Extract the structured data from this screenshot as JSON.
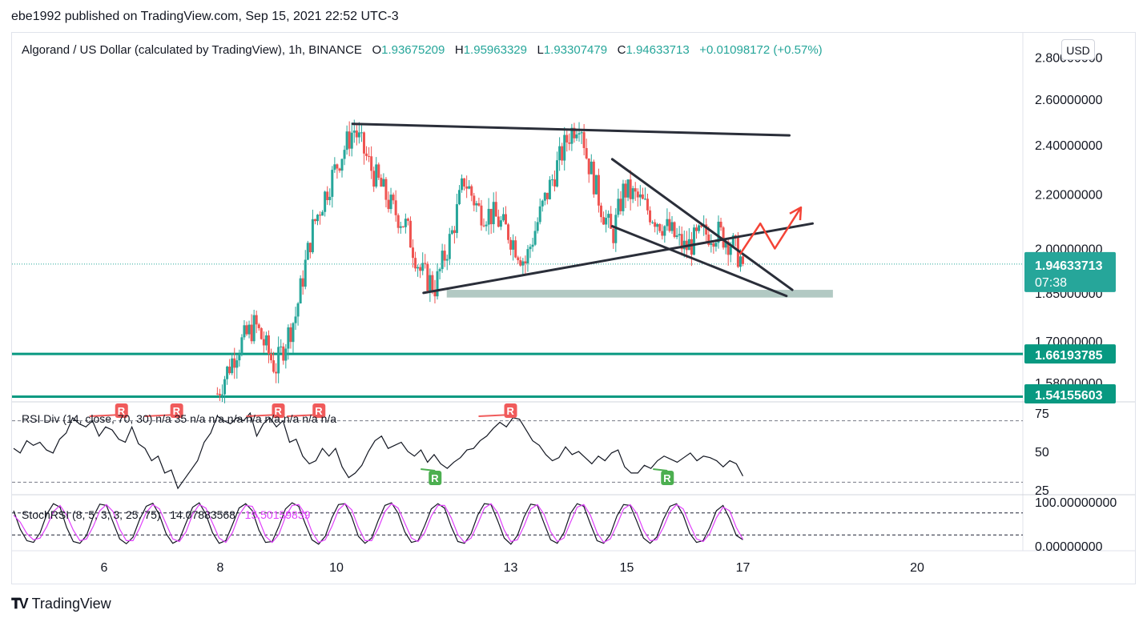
{
  "header": {
    "published": "ebe1992 published on TradingView.com, Sep 15, 2021 22:52 UTC-3"
  },
  "legend": {
    "symbol": "Algorand / US Dollar (calculated by TradingView), 1h, BINANCE",
    "o_label": "O",
    "o": "1.93675209",
    "h_label": "H",
    "h": "1.95963329",
    "l_label": "L",
    "l": "1.93307479",
    "c_label": "C",
    "c": "1.94633713",
    "change": "+0.01098172 (+0.57%)"
  },
  "currency": "USD",
  "price_axis": {
    "ticks": [
      "2.80000000",
      "2.60000000",
      "2.40000000",
      "2.20000000",
      "2.00000000",
      "1.85000000",
      "1.70000000",
      "1.58000000"
    ],
    "current_price": "1.94633713",
    "countdown": "07:38",
    "levels": [
      "1.66193785",
      "1.54155603"
    ]
  },
  "time_axis": {
    "labels": [
      "6",
      "8",
      "10",
      "13",
      "15",
      "17",
      "20"
    ]
  },
  "rsi": {
    "label": "RSI Div (14, close, 70, 30)  n/a  35  n/a  n/a  n/a  n/a  n/a  n/a  n/a  n/a",
    "ticks": [
      "75",
      "50",
      "25"
    ],
    "bear_marker": "R",
    "bull_marker": "R"
  },
  "stoch": {
    "label": "StochRSI (8, 5, 3, 3, 25, 75)",
    "k_value": "14.07883568",
    "d_value": "15.50159839",
    "ticks": [
      "100.00000000",
      "0.00000000"
    ]
  },
  "colors": {
    "up": "#26a69a",
    "down": "#ef5350",
    "level": "#089981",
    "zone": "#9fbcb4",
    "arrow": "#f44336",
    "stoch_d": "#e040fb",
    "bull_marker": "#4caf50",
    "bear_marker": "#f05b5b"
  },
  "chart_data": [
    {
      "type": "candlestick",
      "title": "Algorand / US Dollar, 1h, BINANCE",
      "ylabel": "USD",
      "ylim": [
        1.52,
        2.85
      ],
      "y_scale": "log",
      "x_range_days": [
        5,
        21
      ],
      "x_ticks": [
        6,
        8,
        10,
        13,
        15,
        17,
        20
      ],
      "last_close": 1.94633713,
      "price_path": [
        [
          7.95,
          1.55
        ],
        [
          8.3,
          1.68
        ],
        [
          8.6,
          1.75
        ],
        [
          8.95,
          1.62
        ],
        [
          9.3,
          1.78
        ],
        [
          9.6,
          2.08
        ],
        [
          10.05,
          2.34
        ],
        [
          10.3,
          2.47
        ],
        [
          10.6,
          2.3
        ],
        [
          10.95,
          2.15
        ],
        [
          11.2,
          2.08
        ],
        [
          11.45,
          1.92
        ],
        [
          11.7,
          1.87
        ],
        [
          12.0,
          2.06
        ],
        [
          12.2,
          2.26
        ],
        [
          12.45,
          2.14
        ],
        [
          12.7,
          2.12
        ],
        [
          12.95,
          2.06
        ],
        [
          13.25,
          1.95
        ],
        [
          13.5,
          2.12
        ],
        [
          13.75,
          2.28
        ],
        [
          14.0,
          2.44
        ],
        [
          14.2,
          2.52
        ],
        [
          14.3,
          2.36
        ],
        [
          14.55,
          2.16
        ],
        [
          14.75,
          2.04
        ],
        [
          14.95,
          2.22
        ],
        [
          15.2,
          2.18
        ],
        [
          15.45,
          2.12
        ],
        [
          15.75,
          2.06
        ],
        [
          16.0,
          2.0
        ],
        [
          16.3,
          2.05
        ],
        [
          16.55,
          2.06
        ],
        [
          16.8,
          2.02
        ],
        [
          17.0,
          1.95
        ]
      ],
      "annotations": {
        "resistance_line": [
          [
            10.28,
            2.49
          ],
          [
            17.8,
            2.44
          ]
        ],
        "support_line": [
          [
            11.5,
            1.85
          ],
          [
            18.2,
            2.09
          ]
        ],
        "wedge_upper": [
          [
            14.75,
            2.34
          ],
          [
            17.85,
            1.86
          ]
        ],
        "wedge_lower": [
          [
            14.75,
            2.08
          ],
          [
            17.75,
            1.84
          ]
        ],
        "support_zone": [
          1.835,
          1.86
        ],
        "horizontal_levels": [
          1.66193785,
          1.54155603
        ],
        "projection_path": [
          [
            16.95,
            1.98
          ],
          [
            17.3,
            2.09
          ],
          [
            17.55,
            2.0
          ],
          [
            18.0,
            2.15
          ]
        ]
      }
    },
    {
      "type": "line",
      "title": "RSI Div (14, close, 70, 30)",
      "ylim": [
        15,
        85
      ],
      "bands": [
        70,
        30
      ],
      "ticks": [
        75,
        50,
        25
      ],
      "values": [
        52,
        49,
        57,
        54,
        56,
        51,
        49,
        58,
        62,
        72,
        68,
        66,
        70,
        60,
        66,
        64,
        58,
        56,
        66,
        55,
        52,
        44,
        47,
        36,
        38,
        26,
        32,
        38,
        44,
        56,
        62,
        73,
        70,
        68,
        72,
        70,
        75,
        60,
        68,
        72,
        66,
        70,
        56,
        58,
        47,
        42,
        44,
        52,
        47,
        52,
        40,
        33,
        36,
        41,
        50,
        57,
        60,
        52,
        54,
        56,
        50,
        47,
        51,
        43,
        48,
        42,
        39,
        43,
        46,
        51,
        52,
        57,
        60,
        65,
        69,
        66,
        72,
        71,
        64,
        57,
        54,
        48,
        44,
        46,
        53,
        48,
        50,
        46,
        42,
        47,
        44,
        49,
        51,
        40,
        36,
        36,
        41,
        39,
        44,
        47,
        45,
        43,
        46,
        49,
        44,
        47,
        46,
        44,
        40,
        44,
        42,
        34
      ],
      "markers": [
        {
          "kind": "bearish",
          "label": "R",
          "day": 6.3
        },
        {
          "kind": "bearish",
          "label": "R",
          "day": 7.25
        },
        {
          "kind": "bearish",
          "label": "R",
          "day": 9.0
        },
        {
          "kind": "bearish",
          "label": "R",
          "day": 9.7
        },
        {
          "kind": "bearish",
          "label": "R",
          "day": 13.0
        },
        {
          "kind": "bullish",
          "label": "R",
          "day": 11.7
        },
        {
          "kind": "bullish",
          "label": "R",
          "day": 15.7
        }
      ]
    },
    {
      "type": "line",
      "title": "StochRSI (8, 5, 3, 3, 25, 75)",
      "ylim": [
        -5,
        105
      ],
      "bands": [
        75,
        25
      ],
      "ticks": [
        100,
        0
      ],
      "series": [
        {
          "name": "K",
          "values": [
            80,
            38,
            12,
            8,
            30,
            72,
            96,
            88,
            42,
            10,
            6,
            24,
            66,
            95,
            92,
            54,
            16,
            5,
            20,
            60,
            90,
            97,
            70,
            28,
            6,
            14,
            52,
            88,
            98,
            72,
            30,
            6,
            12,
            48,
            86,
            96,
            80,
            36,
            8,
            10,
            44,
            84,
            98,
            90,
            50,
            14,
            4,
            22,
            64,
            94,
            96,
            66,
            22,
            6,
            18,
            58,
            92,
            98,
            74,
            32,
            8,
            12,
            46,
            84,
            96,
            86,
            44,
            10,
            6,
            28,
            70,
            96,
            94,
            58,
            18,
            4,
            24,
            66,
            95,
            92,
            52,
            14,
            6,
            30,
            74,
            96,
            90,
            50,
            12,
            6,
            26,
            68,
            94,
            92,
            56,
            18,
            6,
            20,
            60,
            90,
            96,
            70,
            28,
            8,
            12,
            42,
            80,
            92,
            62,
            24,
            14
          ],
          "last": 14.07883568
        },
        {
          "name": "D",
          "values": [
            70,
            54,
            28,
            14,
            18,
            44,
            78,
            92,
            70,
            36,
            12,
            16,
            44,
            80,
            94,
            78,
            38,
            12,
            12,
            40,
            76,
            94,
            84,
            50,
            16,
            10,
            32,
            72,
            94,
            86,
            52,
            18,
            8,
            30,
            70,
            92,
            90,
            60,
            22,
            8,
            26,
            66,
            92,
            94,
            72,
            32,
            8,
            14,
            44,
            82,
            96,
            82,
            42,
            12,
            12,
            40,
            78,
            96,
            86,
            52,
            18,
            10,
            30,
            68,
            92,
            92,
            64,
            26,
            8,
            18,
            50,
            86,
            96,
            76,
            36,
            10,
            14,
            46,
            84,
            94,
            72,
            32,
            10,
            18,
            54,
            88,
            94,
            70,
            30,
            8,
            16,
            48,
            84,
            94,
            74,
            36,
            12,
            14,
            42,
            78,
            94,
            84,
            48,
            16,
            10,
            28,
            64,
            88,
            80,
            42,
            15
          ],
          "last": 15.50159839
        }
      ]
    }
  ]
}
